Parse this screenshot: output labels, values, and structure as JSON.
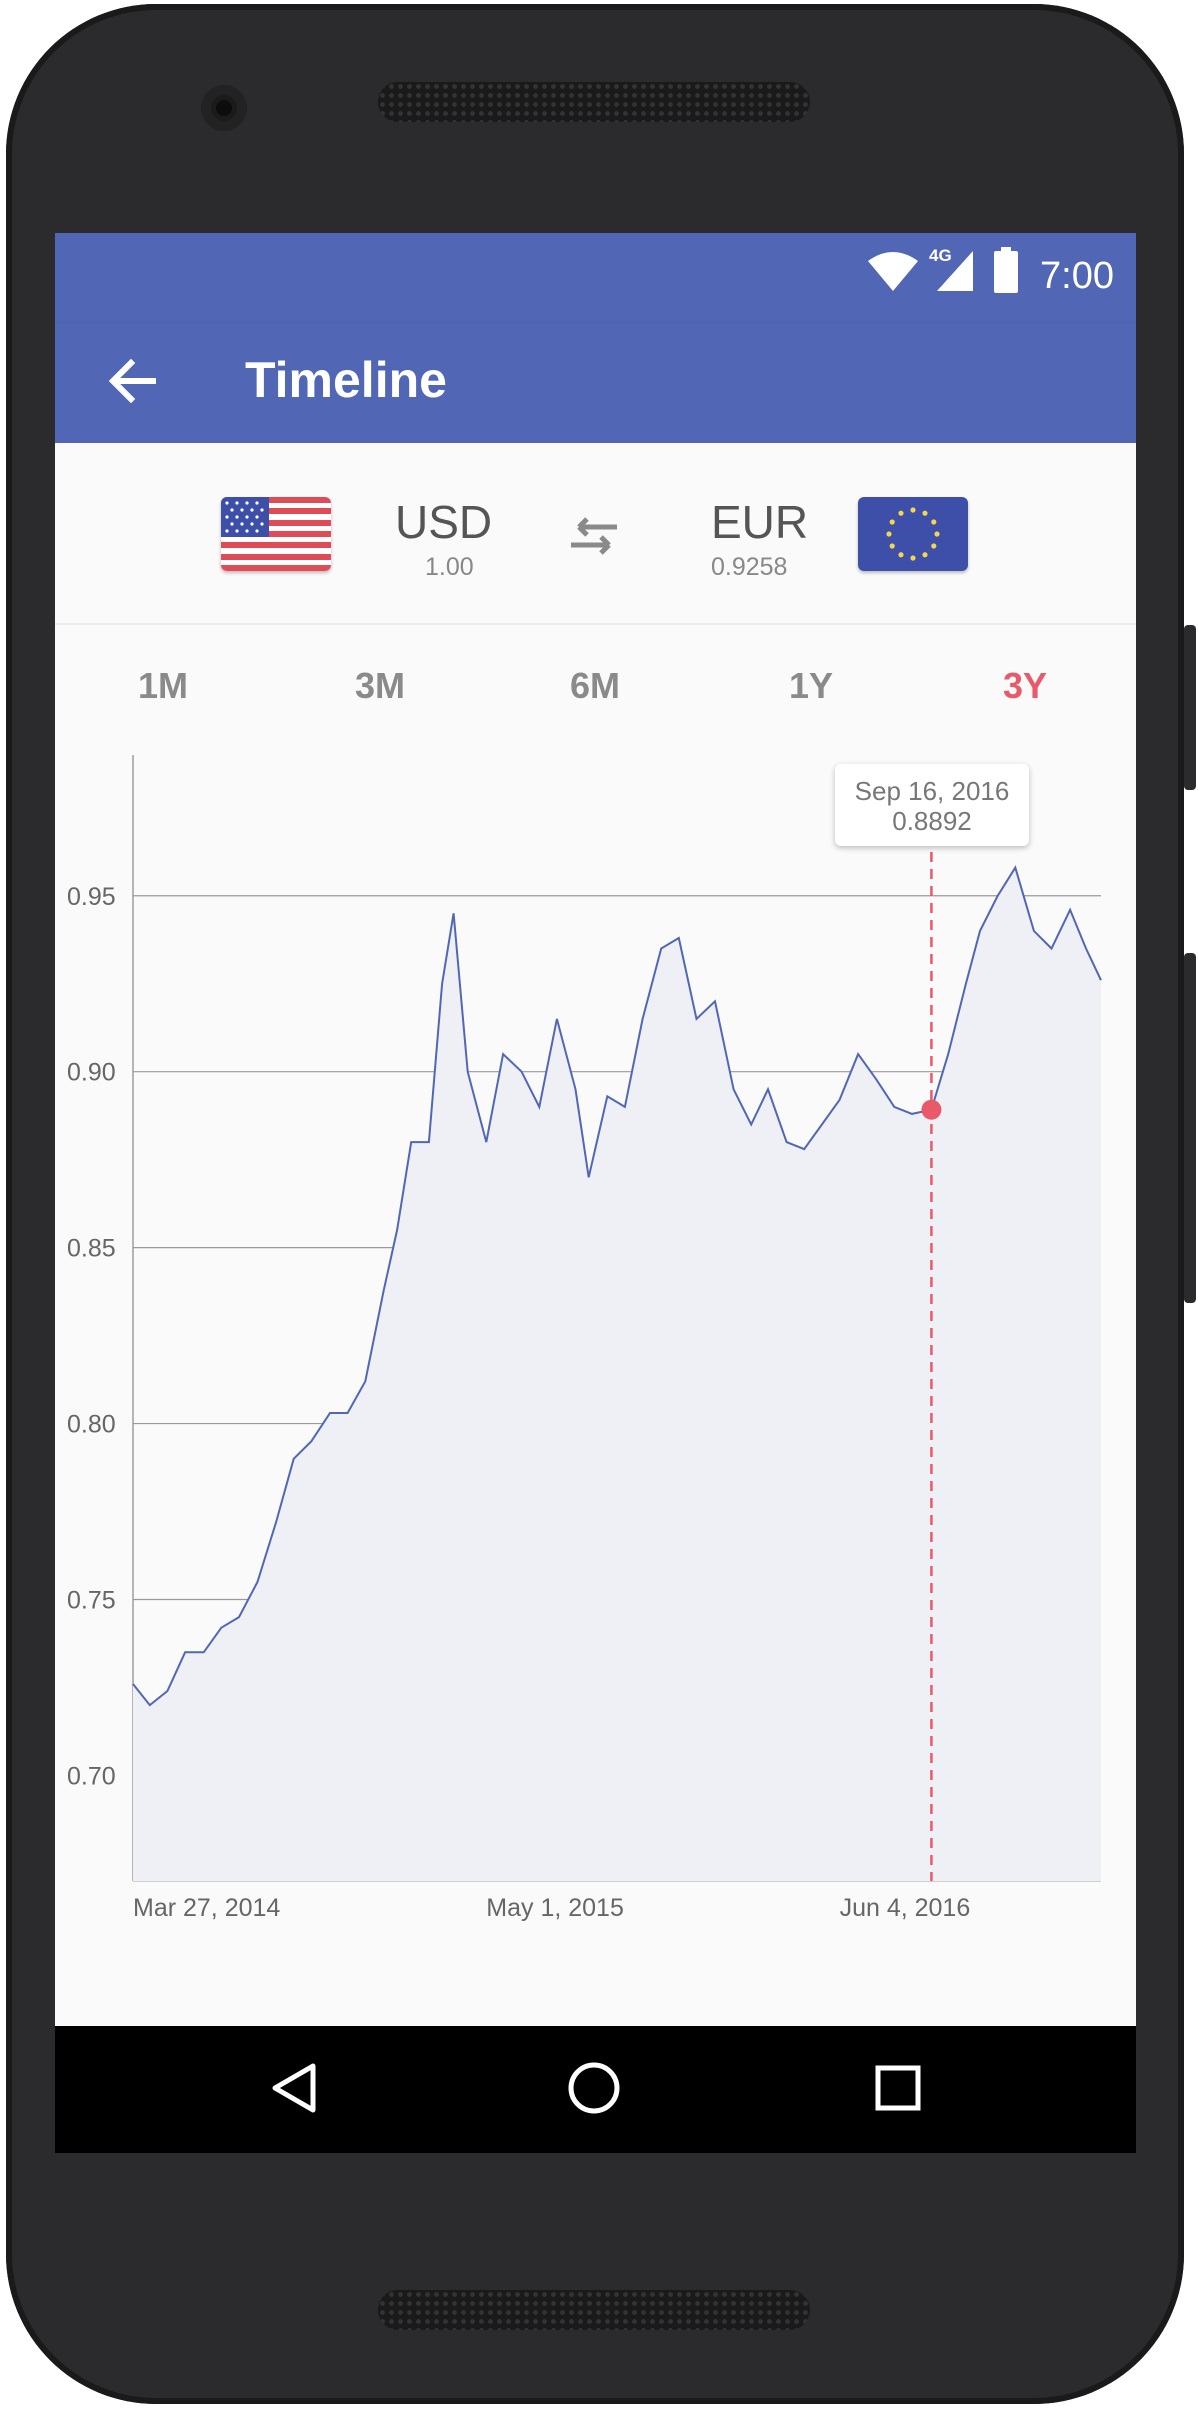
{
  "status": {
    "network": "4G",
    "time": "7:00"
  },
  "app_bar": {
    "title": "Timeline"
  },
  "from_currency": {
    "code": "USD",
    "rate": "1.00"
  },
  "to_currency": {
    "code": "EUR",
    "rate": "0.9258"
  },
  "ranges": [
    {
      "label": "1M",
      "active": false
    },
    {
      "label": "3M",
      "active": false
    },
    {
      "label": "6M",
      "active": false
    },
    {
      "label": "1Y",
      "active": false
    },
    {
      "label": "3Y",
      "active": true
    }
  ],
  "tooltip": {
    "date": "Sep 16, 2016",
    "value": "0.8892"
  },
  "colors": {
    "primary": "#5167b5",
    "accent": "#e85a6a",
    "line": "#5167b5",
    "fill": "#eef0f6"
  },
  "chart_data": {
    "type": "area",
    "ylim": [
      0.67,
      0.99
    ],
    "yticks": [
      "0.95",
      "0.90",
      "0.85",
      "0.80",
      "0.75",
      "0.70"
    ],
    "xticks": [
      "Mar 27, 2014",
      "May 1, 2015",
      "Jun 4, 2016"
    ],
    "x": [
      "2014-03-27",
      "2014-04-15",
      "2014-05-05",
      "2014-05-25",
      "2014-06-15",
      "2014-07-05",
      "2014-07-25",
      "2014-08-15",
      "2014-09-05",
      "2014-09-25",
      "2014-10-15",
      "2014-11-05",
      "2014-11-25",
      "2014-12-15",
      "2015-01-05",
      "2015-01-20",
      "2015-02-05",
      "2015-02-25",
      "2015-03-12",
      "2015-03-25",
      "2015-04-10",
      "2015-05-01",
      "2015-05-20",
      "2015-06-10",
      "2015-06-30",
      "2015-07-20",
      "2015-08-10",
      "2015-08-25",
      "2015-09-15",
      "2015-10-05",
      "2015-10-25",
      "2015-11-15",
      "2015-12-05",
      "2015-12-25",
      "2016-01-15",
      "2016-02-05",
      "2016-02-25",
      "2016-03-15",
      "2016-04-05",
      "2016-04-25",
      "2016-05-15",
      "2016-06-04",
      "2016-06-25",
      "2016-07-15",
      "2016-08-05",
      "2016-08-25",
      "2016-09-16",
      "2016-10-05",
      "2016-10-25",
      "2016-11-10",
      "2016-11-30",
      "2016-12-20",
      "2017-01-10",
      "2017-01-30",
      "2017-02-20",
      "2017-03-10",
      "2017-03-27"
    ],
    "values": [
      0.726,
      0.72,
      0.724,
      0.735,
      0.735,
      0.742,
      0.745,
      0.755,
      0.772,
      0.79,
      0.795,
      0.803,
      0.803,
      0.812,
      0.838,
      0.855,
      0.88,
      0.88,
      0.925,
      0.945,
      0.9,
      0.88,
      0.905,
      0.9,
      0.89,
      0.915,
      0.895,
      0.87,
      0.893,
      0.89,
      0.915,
      0.935,
      0.938,
      0.915,
      0.92,
      0.895,
      0.885,
      0.895,
      0.88,
      0.878,
      0.885,
      0.892,
      0.905,
      0.898,
      0.89,
      0.888,
      0.8892,
      0.905,
      0.925,
      0.94,
      0.95,
      0.958,
      0.94,
      0.935,
      0.946,
      0.935,
      0.926
    ],
    "highlight": {
      "date": "Sep 16, 2016",
      "value": 0.8892
    }
  }
}
